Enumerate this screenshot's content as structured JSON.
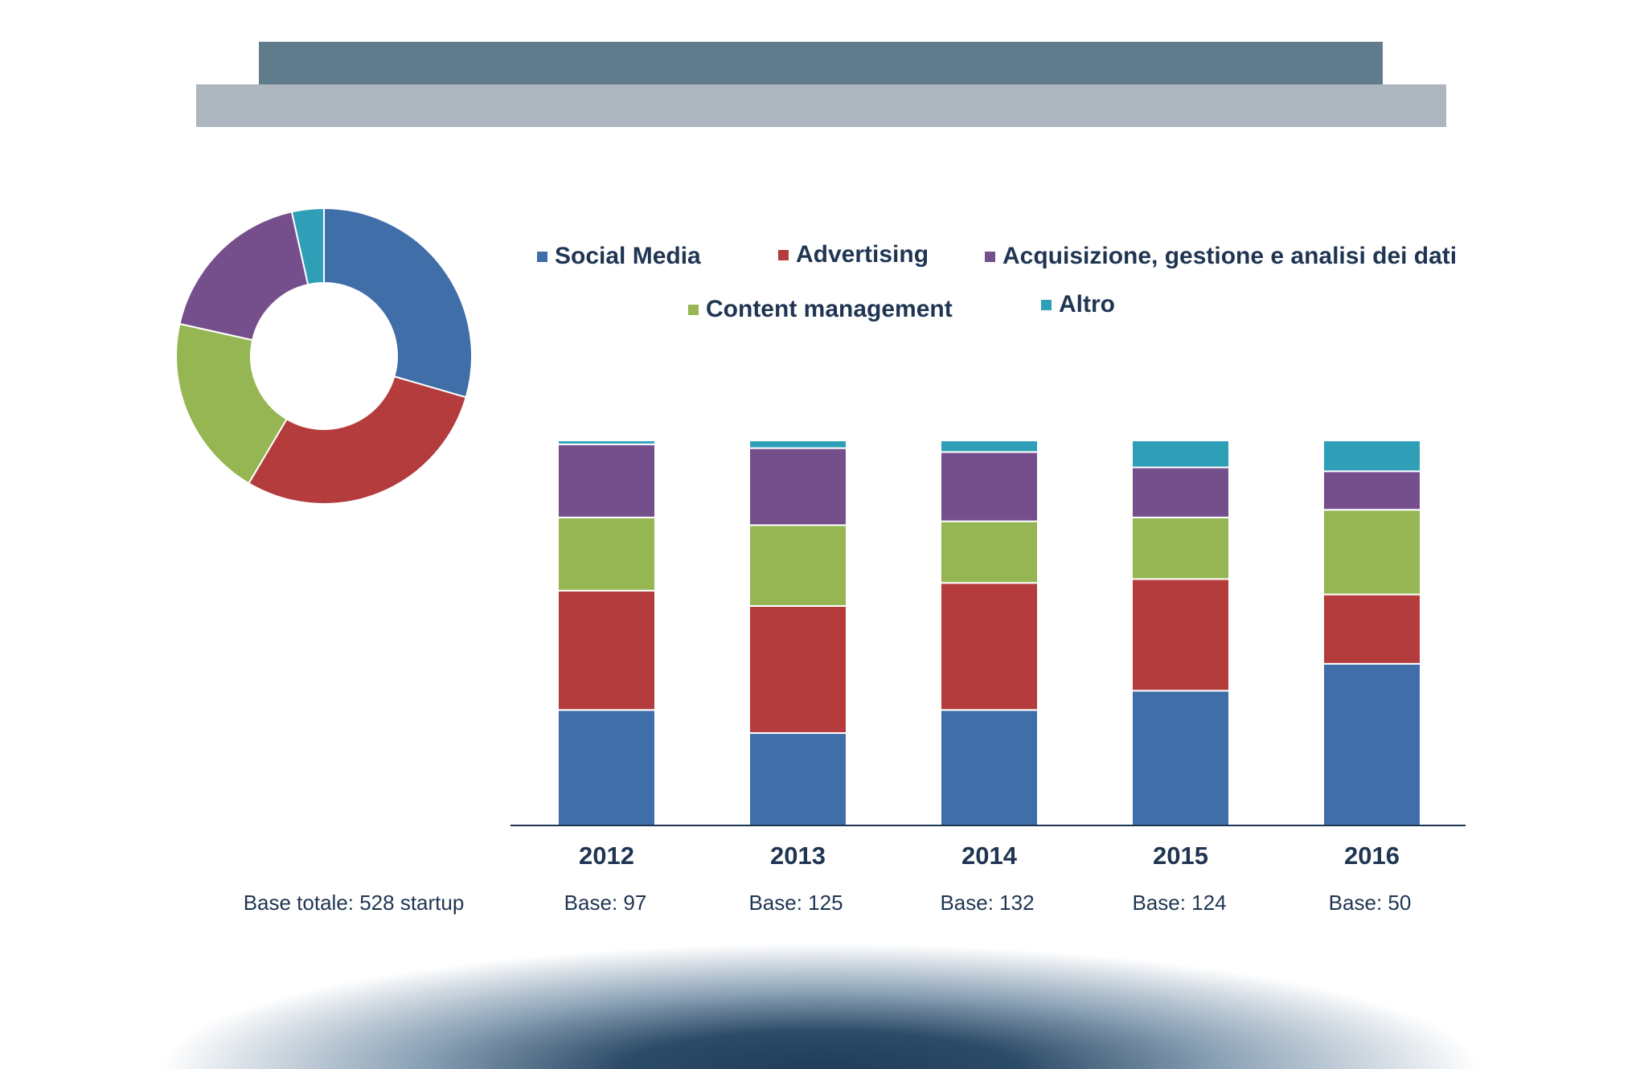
{
  "colors": {
    "social_media": "#3f6ea8",
    "advertising": "#b43c3c",
    "acquisizione": "#754f8c",
    "content_management": "#95b653",
    "altro": "#2f9fb8"
  },
  "legend": {
    "social_media": "Social Media",
    "advertising": "Advertising",
    "acquisizione": "Acquisizione, gestione e analisi dei dati",
    "content_management": "Content management",
    "altro": "Altro"
  },
  "base": {
    "total": "Base totale: 528 startup",
    "per_year": [
      "Base: 97",
      "Base: 125",
      "Base: 132",
      "Base: 124",
      "Base: 50"
    ]
  },
  "chart_data": [
    {
      "type": "pie",
      "subtype": "donut",
      "categories": [
        "Social Media",
        "Advertising",
        "Content management",
        "Acquisizione, gestione e analisi dei dati",
        "Altro"
      ],
      "values": [
        29.5,
        29,
        20,
        18,
        3.5
      ],
      "unit": "%"
    },
    {
      "type": "bar",
      "stacked": true,
      "categories": [
        "2012",
        "2013",
        "2014",
        "2015",
        "2016"
      ],
      "series": [
        {
          "name": "Social Media",
          "values": [
            30,
            24,
            30,
            35,
            42
          ]
        },
        {
          "name": "Advertising",
          "values": [
            31,
            33,
            33,
            29,
            18
          ]
        },
        {
          "name": "Content management",
          "values": [
            19,
            21,
            16,
            16,
            22
          ]
        },
        {
          "name": "Acquisizione, gestione e analisi dei dati",
          "values": [
            19,
            20,
            18,
            13,
            10
          ]
        },
        {
          "name": "Altro",
          "values": [
            1,
            2,
            3,
            7,
            8
          ]
        }
      ],
      "ylim": [
        0,
        100
      ],
      "unit": "%"
    }
  ]
}
